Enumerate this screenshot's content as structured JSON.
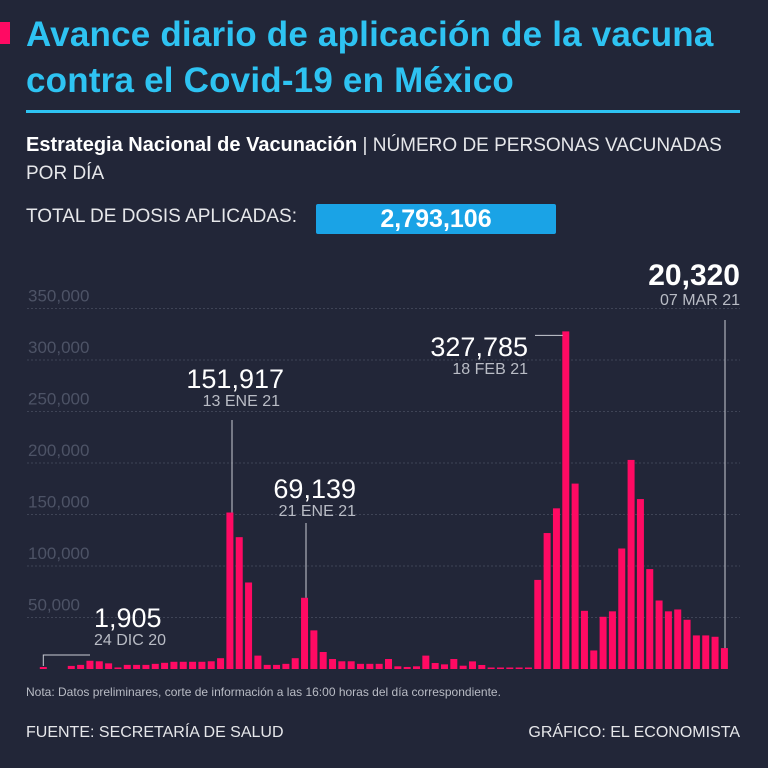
{
  "header": {
    "title": "Avance diario de aplicación de la vacuna contra el Covid-19 en México",
    "subtitle_bold": "Estrategia Nacional de Vacunación",
    "subtitle_rest": " | NÚMERO DE PERSONAS VACUNADAS POR DÍA",
    "total_label": "TOTAL DE DOSIS APLICADAS:",
    "total_value": "2,793,106"
  },
  "colors": {
    "background": "#222638",
    "accent": "#ff0a63",
    "title": "#2ec3f2",
    "bar": "#ff0a63"
  },
  "chart_data": {
    "type": "bar",
    "title": "Número de personas vacunadas por día",
    "x_start": "24 DIC 20",
    "x_end": "07 MAR 21",
    "ylim": [
      0,
      350000
    ],
    "yticks": [
      "350,000",
      "300,000",
      "250,000",
      "200,000",
      "150,000",
      "100,000",
      "50,000"
    ],
    "ytick_values": [
      350000,
      300000,
      250000,
      200000,
      150000,
      100000,
      50000
    ],
    "grid": true,
    "values": [
      1905,
      0,
      0,
      3000,
      4000,
      8000,
      7500,
      5500,
      1500,
      4000,
      4000,
      4000,
      5000,
      6000,
      7000,
      7000,
      7000,
      7000,
      7500,
      10500,
      151917,
      128000,
      84000,
      13000,
      4000,
      4000,
      5000,
      10500,
      69139,
      37500,
      16500,
      9700,
      7500,
      7500,
      5000,
      5000,
      5000,
      9700,
      2600,
      2000,
      2600,
      13000,
      5800,
      4500,
      9700,
      3200,
      7400,
      3900,
      800,
      800,
      800,
      800,
      800,
      86500,
      132000,
      156000,
      327785,
      180000,
      56500,
      18000,
      50700,
      56000,
      117000,
      203000,
      165000,
      97000,
      66500,
      56000,
      57800,
      47800,
      32600,
      32600,
      31300,
      20320
    ],
    "annotations": [
      {
        "index": 0,
        "value": "1,905",
        "date": "24 DIC 20"
      },
      {
        "index": 20,
        "value": "151,917",
        "date": "13 ENE 21"
      },
      {
        "index": 28,
        "value": "69,139",
        "date": "21 ENE 21"
      },
      {
        "index": 56,
        "value": "327,785",
        "date": "18 FEB 21"
      },
      {
        "index": 73,
        "value": "20,320",
        "date": "07 MAR 21"
      }
    ]
  },
  "footer": {
    "note": "Nota: Datos preliminares, corte de información a las 16:00 horas del día correspondiente.",
    "source": "FUENTE: SECRETARÍA DE SALUD",
    "credit": "GRÁFICO: EL ECONOMISTA"
  }
}
